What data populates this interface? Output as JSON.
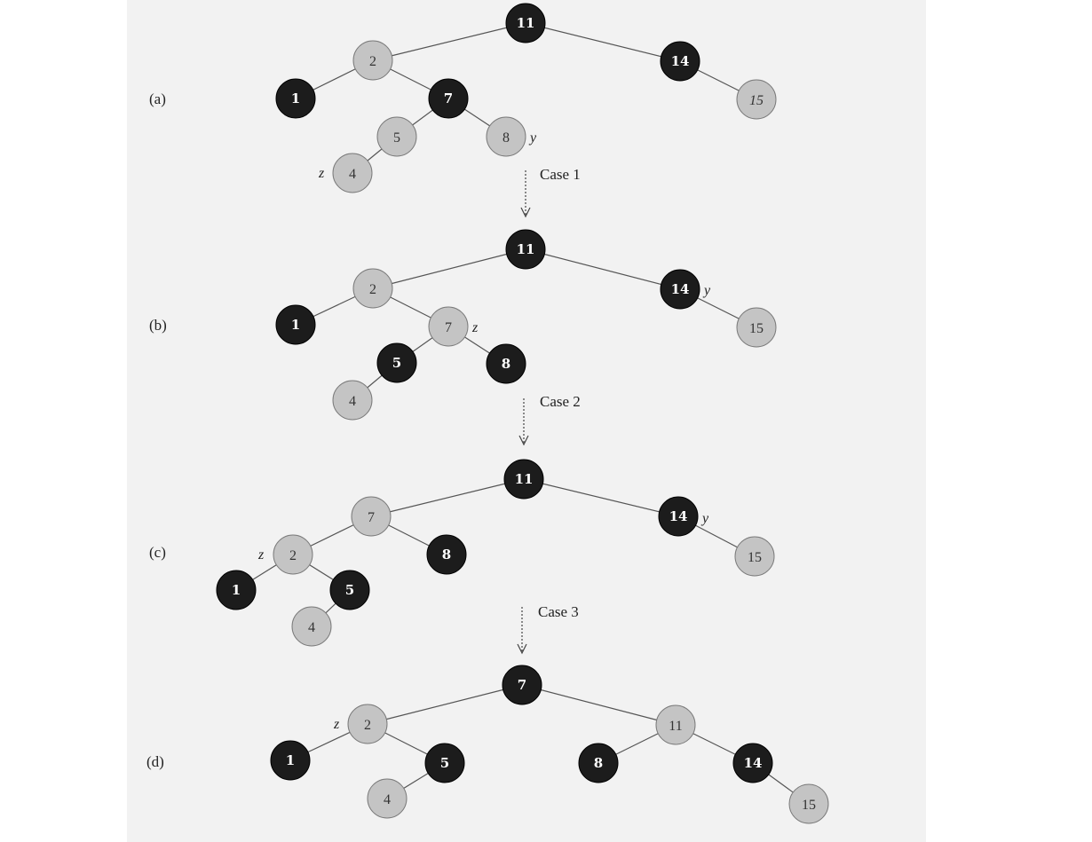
{
  "panels": [
    {
      "label": "(a)",
      "nodes": [
        {
          "key": "11",
          "color": "black"
        },
        {
          "key": "2",
          "color": "red"
        },
        {
          "key": "14",
          "color": "black"
        },
        {
          "key": "1",
          "color": "black"
        },
        {
          "key": "7",
          "color": "black"
        },
        {
          "key": "15",
          "color": "red"
        },
        {
          "key": "5",
          "color": "red"
        },
        {
          "key": "8",
          "color": "red"
        },
        {
          "key": "4",
          "color": "red"
        }
      ],
      "pointers": [
        {
          "name": "y",
          "node": "8",
          "side": "right"
        },
        {
          "name": "z",
          "node": "4",
          "side": "left"
        }
      ]
    },
    {
      "label": "(b)",
      "nodes": [
        {
          "key": "11",
          "color": "black"
        },
        {
          "key": "2",
          "color": "red"
        },
        {
          "key": "14",
          "color": "black"
        },
        {
          "key": "1",
          "color": "black"
        },
        {
          "key": "7",
          "color": "red"
        },
        {
          "key": "15",
          "color": "red"
        },
        {
          "key": "5",
          "color": "black"
        },
        {
          "key": "8",
          "color": "black"
        },
        {
          "key": "4",
          "color": "red"
        }
      ],
      "pointers": [
        {
          "name": "y",
          "node": "14",
          "side": "right"
        },
        {
          "name": "z",
          "node": "7",
          "side": "right"
        }
      ]
    },
    {
      "label": "(c)",
      "nodes": [
        {
          "key": "11",
          "color": "black"
        },
        {
          "key": "7",
          "color": "red"
        },
        {
          "key": "14",
          "color": "black"
        },
        {
          "key": "2",
          "color": "red"
        },
        {
          "key": "8",
          "color": "black"
        },
        {
          "key": "15",
          "color": "red"
        },
        {
          "key": "1",
          "color": "black"
        },
        {
          "key": "5",
          "color": "black"
        },
        {
          "key": "4",
          "color": "red"
        }
      ],
      "pointers": [
        {
          "name": "y",
          "node": "14",
          "side": "right"
        },
        {
          "name": "z",
          "node": "2",
          "side": "left"
        }
      ]
    },
    {
      "label": "(d)",
      "nodes": [
        {
          "key": "7",
          "color": "black"
        },
        {
          "key": "2",
          "color": "red"
        },
        {
          "key": "11",
          "color": "red"
        },
        {
          "key": "1",
          "color": "black"
        },
        {
          "key": "5",
          "color": "black"
        },
        {
          "key": "8",
          "color": "black"
        },
        {
          "key": "14",
          "color": "black"
        },
        {
          "key": "4",
          "color": "red"
        },
        {
          "key": "15",
          "color": "red"
        }
      ],
      "pointers": [
        {
          "name": "z",
          "node": "2",
          "side": "left"
        }
      ]
    }
  ],
  "transitions": [
    {
      "label": "Case 1"
    },
    {
      "label": "Case 2"
    },
    {
      "label": "Case 3"
    }
  ],
  "colors": {
    "black_node": "#1c1c1c",
    "red_node": "#c4c4c4",
    "background": "#f2f2f2"
  }
}
